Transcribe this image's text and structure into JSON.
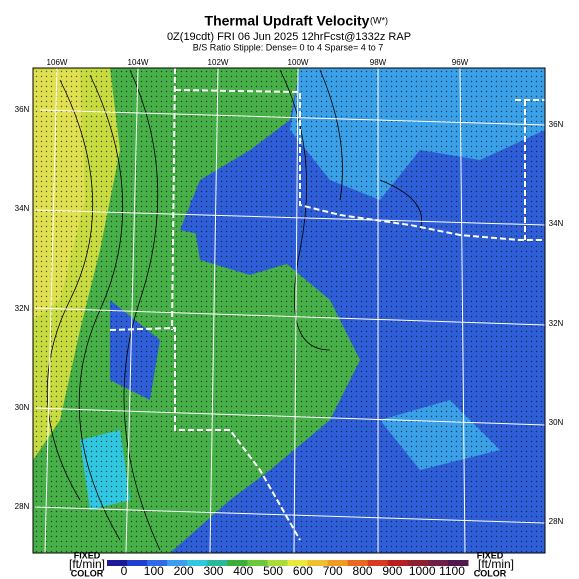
{
  "header": {
    "title": "Thermal Updraft Velocity",
    "title_note": "(W*)",
    "subtitle": "0Z(19cdt) FRI 06 Jun 2025 12hrFcst@1332z RAP",
    "stipple_note": "B/S Ratio Stipple: Dense= 0 to 4 Sparse= 4 to 7"
  },
  "map": {
    "longitude_labels": [
      "106W",
      "104W",
      "102W",
      "100W",
      "98W",
      "96W"
    ],
    "latitude_labels": [
      "36N",
      "34N",
      "32N",
      "30N",
      "28N"
    ]
  },
  "colorbar": {
    "left_label": {
      "top": "FIXED",
      "units": "[ft/min]",
      "bottom": "COLOR"
    },
    "right_label": {
      "top": "FIXED",
      "units": "[ft/min]",
      "bottom": "COLOR"
    },
    "ticks": [
      0,
      100,
      200,
      300,
      400,
      500,
      600,
      700,
      800,
      900,
      1000,
      1100
    ],
    "colors": [
      "#1a1a9a",
      "#1f3fd0",
      "#2f6ae8",
      "#3a9ef0",
      "#30c8e0",
      "#2ab89a",
      "#3aae3a",
      "#6ac83a",
      "#a8dc3a",
      "#e8e83a",
      "#f0c030",
      "#f09a28",
      "#e86a20",
      "#d83a20",
      "#b81e20",
      "#902030",
      "#702048",
      "#501850"
    ]
  }
}
